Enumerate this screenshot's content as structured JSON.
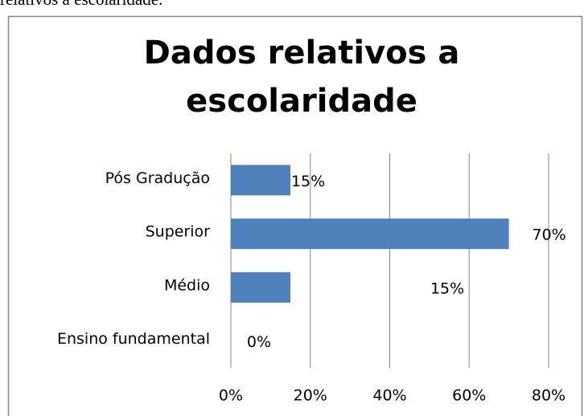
{
  "caption": "relativos a escolaridade.",
  "chart_data": {
    "type": "barh",
    "title": "Dados relativos a escolaridade",
    "categories": [
      "Pós Gradução",
      "Superior",
      "Médio",
      "Ensino fundamental"
    ],
    "values": [
      15,
      70,
      15,
      0
    ],
    "value_labels": [
      "15%",
      "70%",
      "15%",
      "0%"
    ],
    "color": "#4f81bd",
    "xlim": [
      0,
      80
    ],
    "xticks": [
      {
        "value": 0,
        "label": "0%"
      },
      {
        "value": 20,
        "label": "20%"
      },
      {
        "value": 40,
        "label": "40%"
      },
      {
        "value": 60,
        "label": "60%"
      },
      {
        "value": 80,
        "label": "80%"
      }
    ],
    "grid": true
  }
}
